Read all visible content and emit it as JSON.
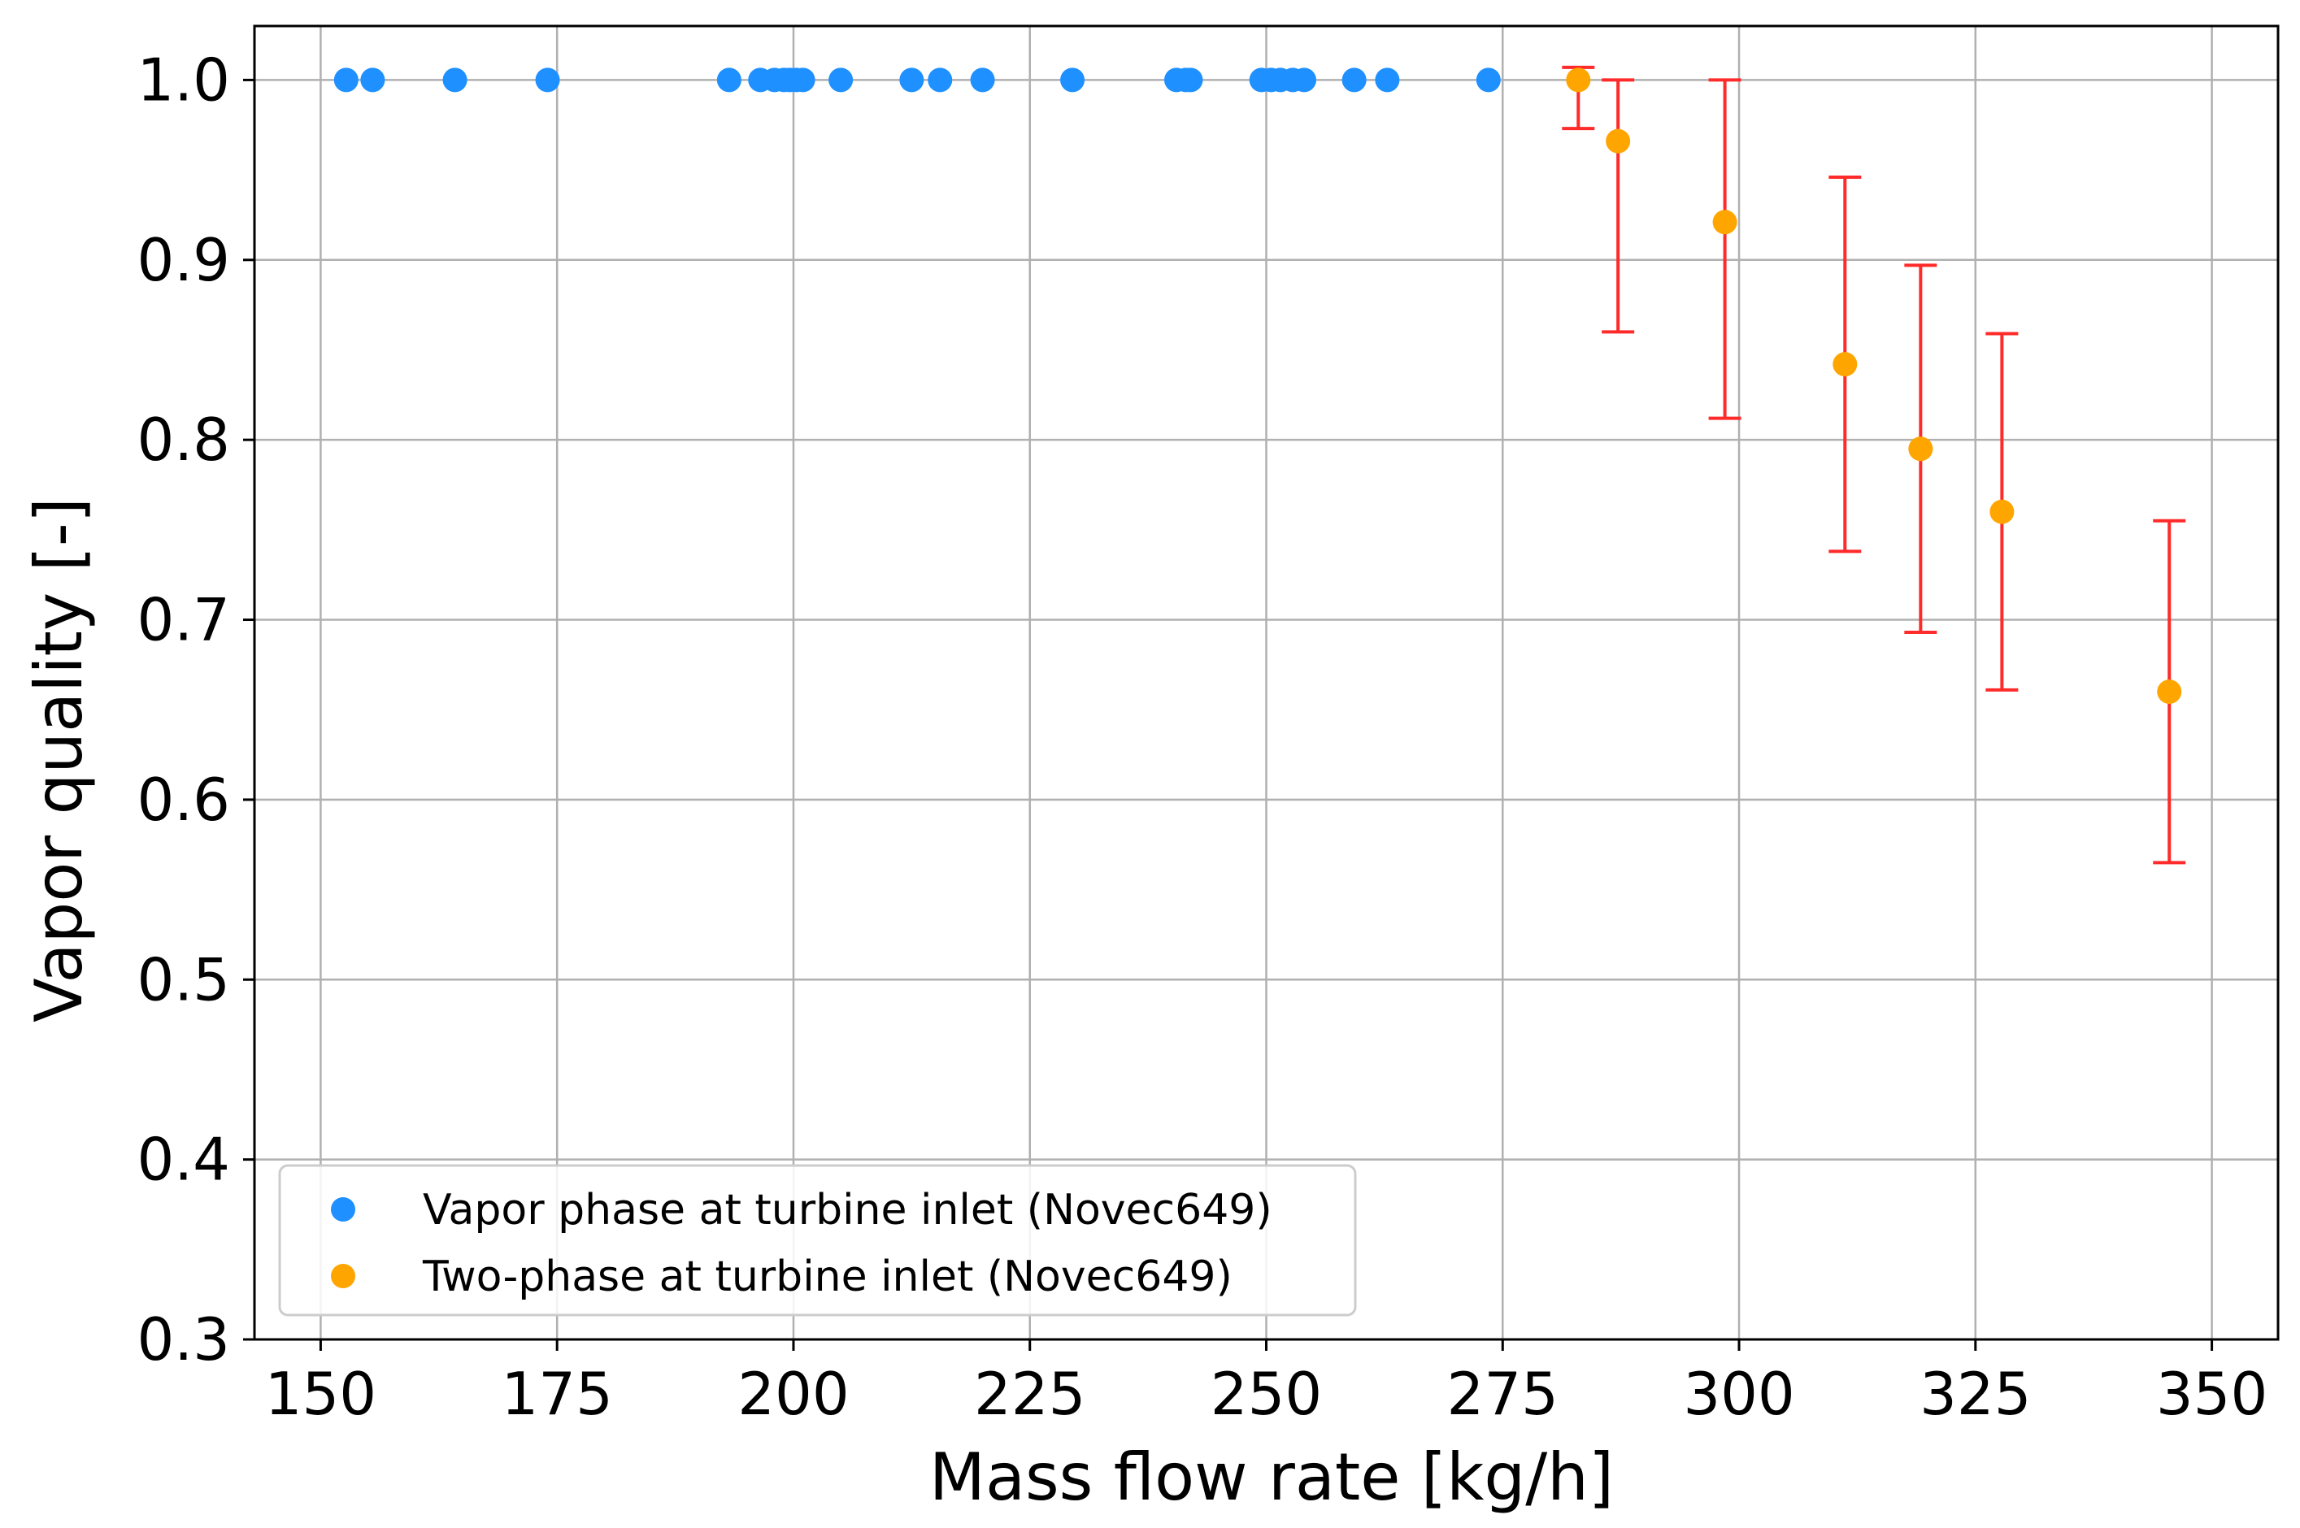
{
  "chart_data": {
    "type": "scatter",
    "title": "",
    "xlabel": "Mass flow rate [kg/h]",
    "ylabel": "Vapor quality [-]",
    "xlim": [
      143,
      357
    ],
    "ylim": [
      0.3,
      1.03
    ],
    "grid": true,
    "legend_position": "lower-left",
    "xticks": [
      150,
      175,
      200,
      225,
      250,
      275,
      300,
      325,
      350
    ],
    "xtick_labels": [
      "150",
      "175",
      "200",
      "225",
      "250",
      "275",
      "300",
      "325",
      "350"
    ],
    "yticks": [
      0.3,
      0.4,
      0.5,
      0.6,
      0.7,
      0.8,
      0.9,
      1.0
    ],
    "ytick_labels": [
      "0.3",
      "0.4",
      "0.5",
      "0.6",
      "0.7",
      "0.8",
      "0.9",
      "1.0"
    ],
    "series": [
      {
        "name": "Vapor phase at turbine inlet (Novec649)",
        "color": "#1e90ff",
        "x": [
          152.7,
          155.5,
          164.2,
          174.0,
          193.2,
          196.5,
          198.0,
          199.0,
          199.6,
          200.3,
          201.0,
          205.0,
          212.5,
          215.5,
          220.0,
          229.5,
          240.5,
          241.5,
          242.0,
          249.5,
          250.5,
          251.5,
          252.8,
          254.0,
          259.3,
          262.8,
          273.5
        ],
        "y": [
          1.0,
          1.0,
          1.0,
          1.0,
          1.0,
          1.0,
          1.0,
          1.0,
          1.0,
          1.0,
          1.0,
          1.0,
          1.0,
          1.0,
          1.0,
          1.0,
          1.0,
          1.0,
          1.0,
          1.0,
          1.0,
          1.0,
          1.0,
          1.0,
          1.0,
          1.0,
          1.0
        ]
      },
      {
        "name": "Two-phase at turbine inlet (Novec649)",
        "color": "#ffa500",
        "errorbar_color": "#ff2a2a",
        "x": [
          283.0,
          287.2,
          298.5,
          311.2,
          319.2,
          327.8,
          345.5
        ],
        "y": [
          1.0,
          0.966,
          0.921,
          0.842,
          0.795,
          0.76,
          0.66
        ],
        "err_low": [
          0.973,
          0.86,
          0.812,
          0.738,
          0.693,
          0.661,
          0.565
        ],
        "err_high": [
          1.007,
          1.0,
          1.0,
          0.946,
          0.897,
          0.859,
          0.755
        ]
      }
    ]
  }
}
